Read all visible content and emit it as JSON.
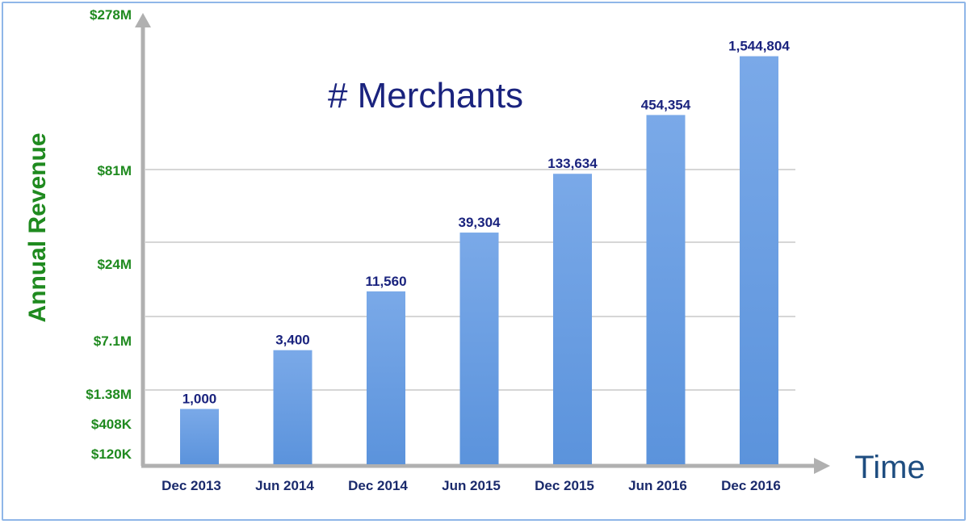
{
  "chart_data": {
    "type": "bar",
    "title": "# Merchants",
    "xlabel": "Time",
    "ylabel": "Annual Revenue",
    "categories": [
      "Dec 2013",
      "Jun 2014",
      "Dec 2014",
      "Jun 2015",
      "Dec 2015",
      "Jun 2016",
      "Dec 2016"
    ],
    "values": [
      1000,
      3400,
      11560,
      39304,
      133634,
      454354,
      1544804
    ],
    "data_labels": [
      "1,000",
      "3,400",
      "11,560",
      "39,304",
      "133,634",
      "454,354",
      "1,544,804"
    ],
    "y_scale": "log",
    "y_ticks": [
      "$120K",
      "$408K",
      "$1.38M",
      "$7.1M",
      "$24M",
      "$81M",
      "$278M"
    ],
    "grid": true,
    "colors": {
      "bar": "#5b93dc",
      "bar_top": "#7aa9e8",
      "axis": "#b0b0b0",
      "ytick_text": "#1f8a1f",
      "title_text": "#1a237e",
      "xlabel_text": "#1e4d80",
      "frame": "#8fb6e8"
    }
  }
}
